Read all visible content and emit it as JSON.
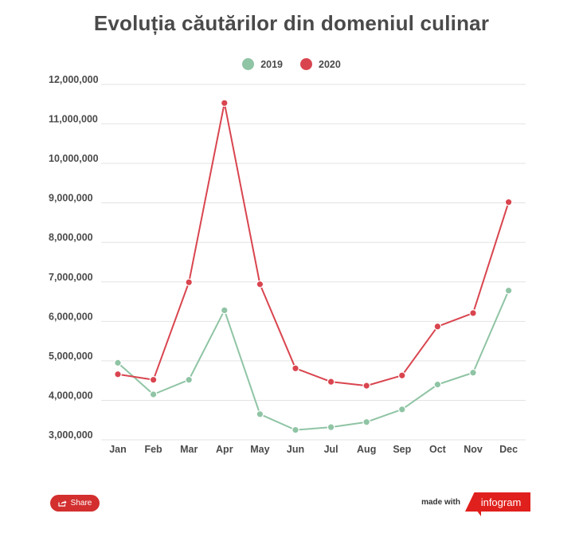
{
  "chart_data": {
    "type": "line",
    "title": "Evoluția căutărilor din domeniul culinar",
    "categories": [
      "Jan",
      "Feb",
      "Mar",
      "Apr",
      "May",
      "Jun",
      "Jul",
      "Aug",
      "Sep",
      "Oct",
      "Nov",
      "Dec"
    ],
    "series": [
      {
        "name": "2019",
        "color": "#8fc4a4",
        "values": [
          4950000,
          4150000,
          4520000,
          6280000,
          3650000,
          3250000,
          3320000,
          3450000,
          3770000,
          4400000,
          4700000,
          6780000
        ]
      },
      {
        "name": "2020",
        "color": "#d9454f",
        "values": [
          4660000,
          4520000,
          6990000,
          11530000,
          6940000,
          4810000,
          4470000,
          4370000,
          4630000,
          5870000,
          6210000,
          9020000
        ]
      }
    ],
    "ylim": [
      3000000,
      12000000
    ],
    "yticks": [
      "12,000,000",
      "11,000,000",
      "10,000,000",
      "9,000,000",
      "8,000,000",
      "7,000,000",
      "6,000,000",
      "5,000,000",
      "4,000,000",
      "3,000,000"
    ],
    "ytick_values": [
      12000000,
      11000000,
      10000000,
      9000000,
      8000000,
      7000000,
      6000000,
      5000000,
      4000000,
      3000000
    ],
    "legend_position": "top-center",
    "grid": true
  },
  "footer": {
    "share_label": "Share",
    "made_with_label": "made with",
    "brand_label": "infogram"
  }
}
